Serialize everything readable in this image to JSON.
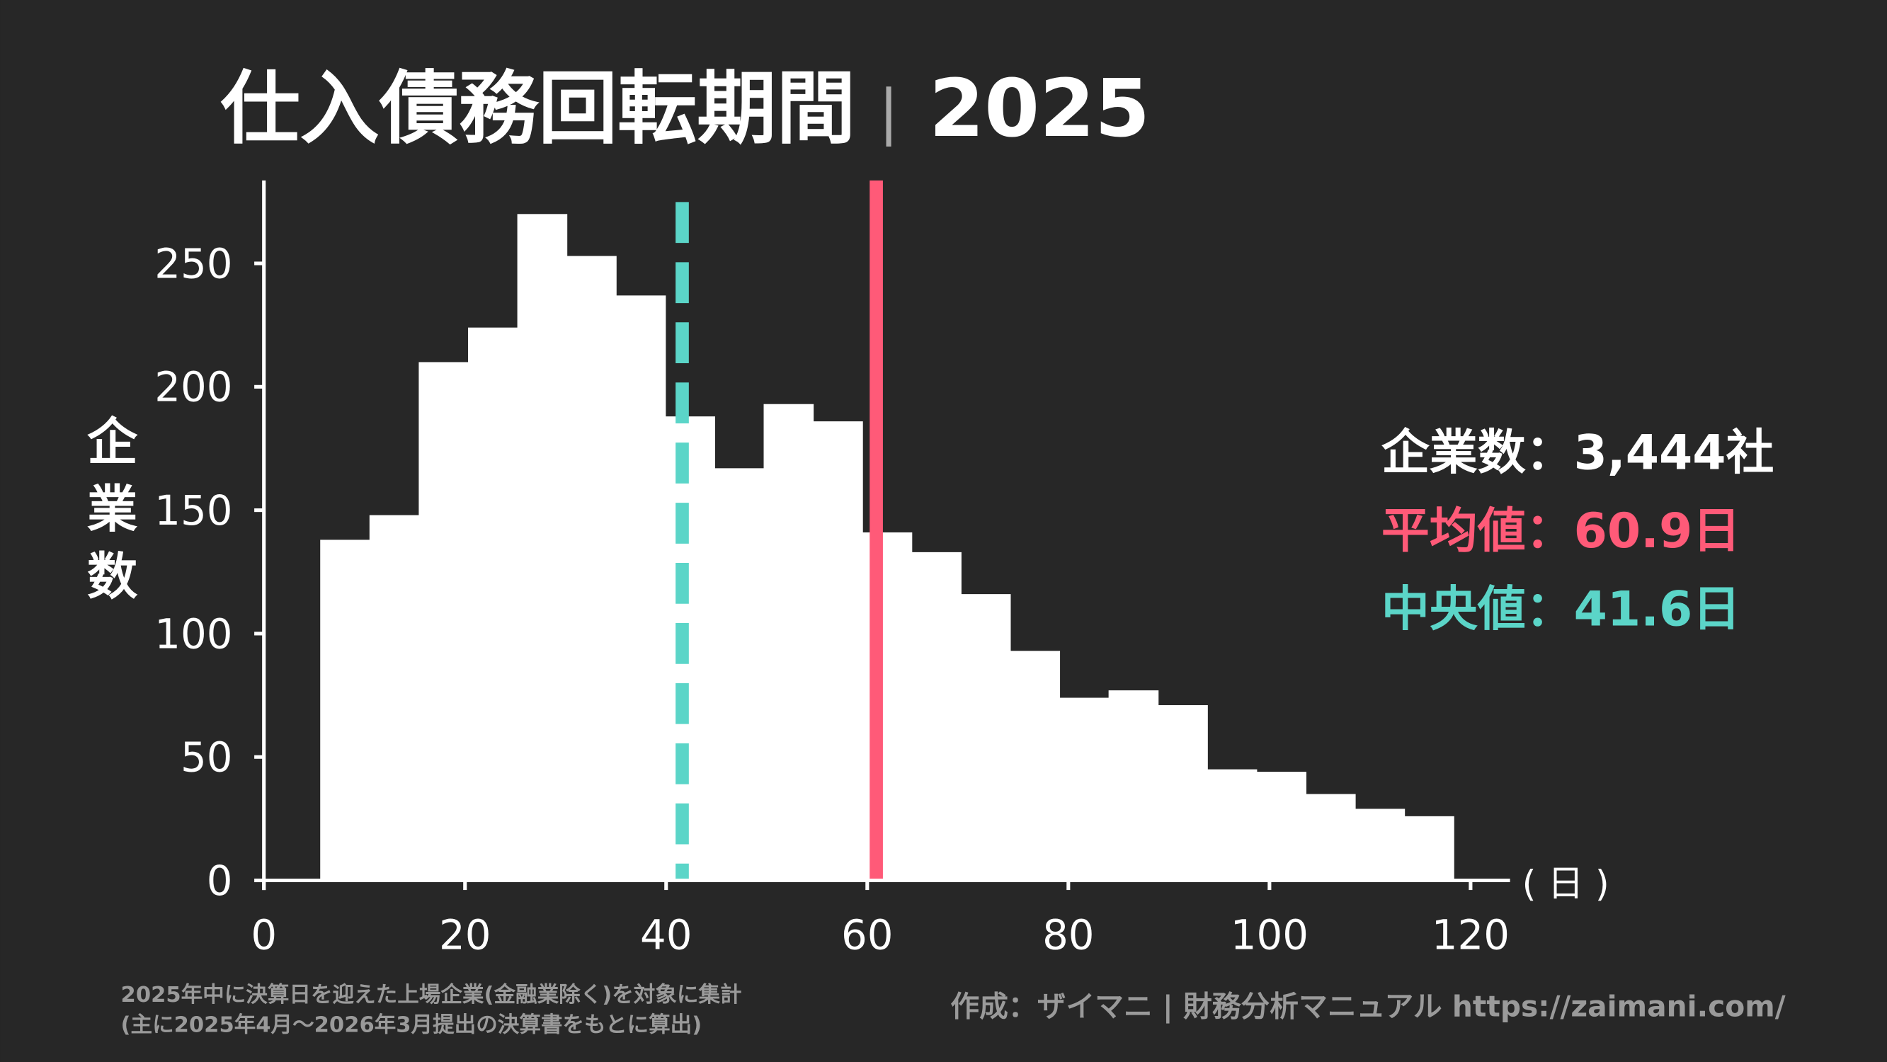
{
  "title": "仕入債務回転期間",
  "title_separator": "|",
  "year": "2025",
  "colors": {
    "background": "#272727",
    "bars": "#ffffff",
    "mean": "#ff5a78",
    "median": "#5bd5c8",
    "footer": "#9a9a9a"
  },
  "stats": {
    "count_label": "企業数",
    "count_value": "3,444社",
    "mean_label": "平均値",
    "mean_value": "60.9日",
    "median_label": "中央値",
    "median_value": "41.6日",
    "separator": "："
  },
  "footer": {
    "note_line1": "2025年中に決算日を迎えた上場企業(金融業除く)を対象に集計",
    "note_line2": "(主に2025年4月〜2026年3月提出の決算書をもとに算出)",
    "credit": "作成：ザイマニ | 財務分析マニュアル https://zaimani.com/"
  },
  "chart_data": {
    "type": "bar",
    "subtype": "histogram",
    "ylabel": "企業数",
    "xunit": "( 日 )",
    "xlim": [
      0,
      124
    ],
    "ylim": [
      0,
      275
    ],
    "xticks": [
      0,
      20,
      40,
      60,
      80,
      100,
      120
    ],
    "yticks": [
      0,
      50,
      100,
      150,
      200,
      250
    ],
    "grid": false,
    "bin_start": 5.6,
    "bin_width": 4.9,
    "values": [
      138,
      148,
      210,
      224,
      270,
      253,
      237,
      188,
      167,
      193,
      186,
      141,
      133,
      116,
      93,
      74,
      77,
      71,
      45,
      44,
      35,
      29,
      26
    ],
    "mean": 60.9,
    "median": 41.6
  }
}
